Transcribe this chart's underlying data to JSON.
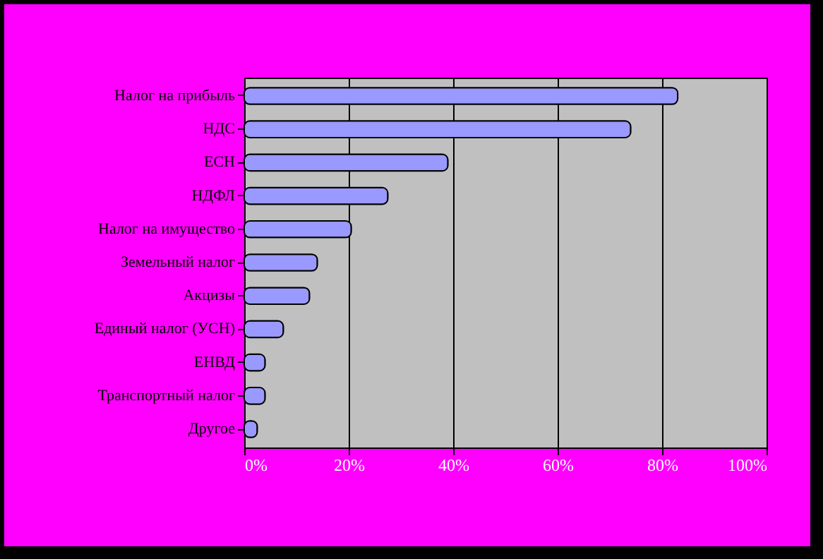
{
  "chart_data": {
    "type": "bar",
    "orientation": "horizontal",
    "categories": [
      "Налог на прибыль",
      "НДС",
      "ЕСН",
      "НДФЛ",
      "Налог на имущество",
      "Земельный налог",
      "Акцизы",
      "Единый налог (УСН)",
      "ЕНВД",
      "Транспортный налог",
      "Другое"
    ],
    "values": [
      83,
      74,
      39,
      27.5,
      20.5,
      14,
      12.5,
      7.5,
      4,
      4,
      2.5
    ],
    "color": "#9999ff",
    "xlim": [
      0,
      100
    ],
    "xticks": [
      {
        "value": 0,
        "label": "0%"
      },
      {
        "value": 20,
        "label": "20%"
      },
      {
        "value": 40,
        "label": "40%"
      },
      {
        "value": 60,
        "label": "60%"
      },
      {
        "value": 80,
        "label": "80%"
      },
      {
        "value": 100,
        "label": "100%"
      }
    ],
    "grid": "x"
  }
}
